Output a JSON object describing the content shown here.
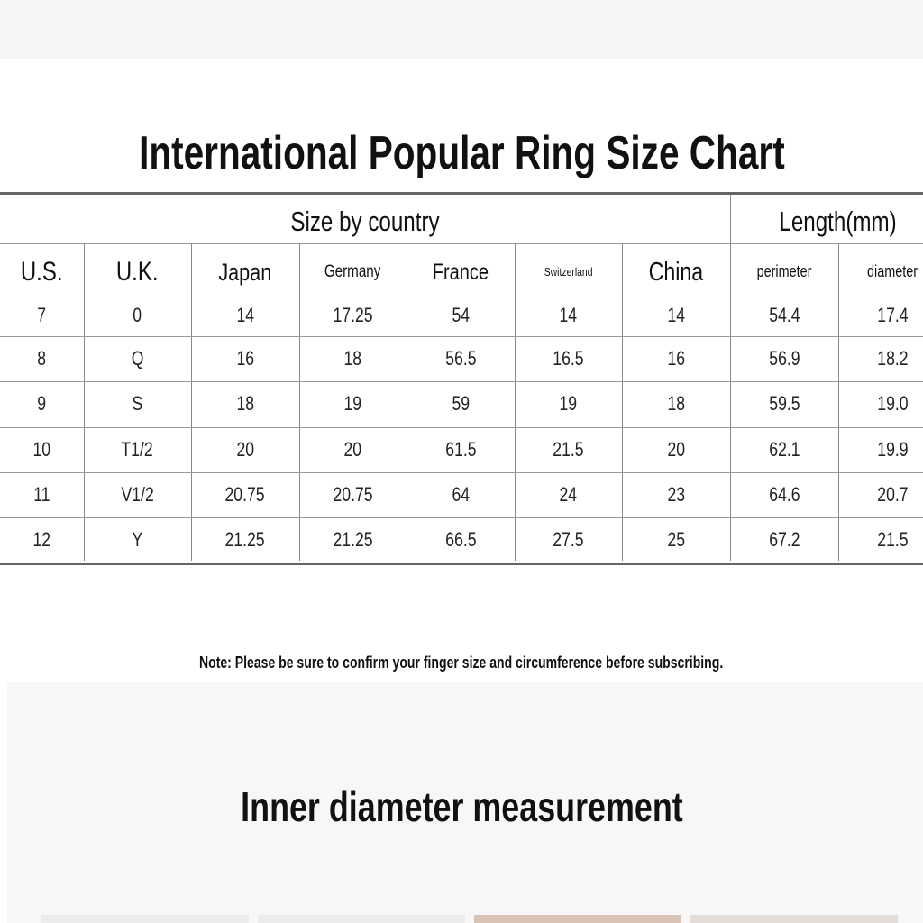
{
  "title": "International Popular Ring Size Chart",
  "groups": {
    "country": "Size by country",
    "length": "Length(mm)"
  },
  "columns": [
    "U.S.",
    "U.K.",
    "Japan",
    "Germany",
    "France",
    "Switzerland",
    "China",
    "perimeter",
    "diameter"
  ],
  "rows": [
    [
      "7",
      "0",
      "14",
      "17.25",
      "54",
      "14",
      "14",
      "54.4",
      "17.4"
    ],
    [
      "8",
      "Q",
      "16",
      "18",
      "56.5",
      "16.5",
      "16",
      "56.9",
      "18.2"
    ],
    [
      "9",
      "S",
      "18",
      "19",
      "59",
      "19",
      "18",
      "59.5",
      "19.0"
    ],
    [
      "10",
      "T1/2",
      "20",
      "20",
      "61.5",
      "21.5",
      "20",
      "62.1",
      "19.9"
    ],
    [
      "11",
      "V1/2",
      "20.75",
      "20.75",
      "64",
      "24",
      "23",
      "64.6",
      "20.7"
    ],
    [
      "12",
      "Y",
      "21.25",
      "21.25",
      "66.5",
      "27.5",
      "25",
      "67.2",
      "21.5"
    ]
  ],
  "note": "Note: Please be sure to confirm your finger size and circumference before subscribing.",
  "subtitle": "Inner diameter measurement"
}
